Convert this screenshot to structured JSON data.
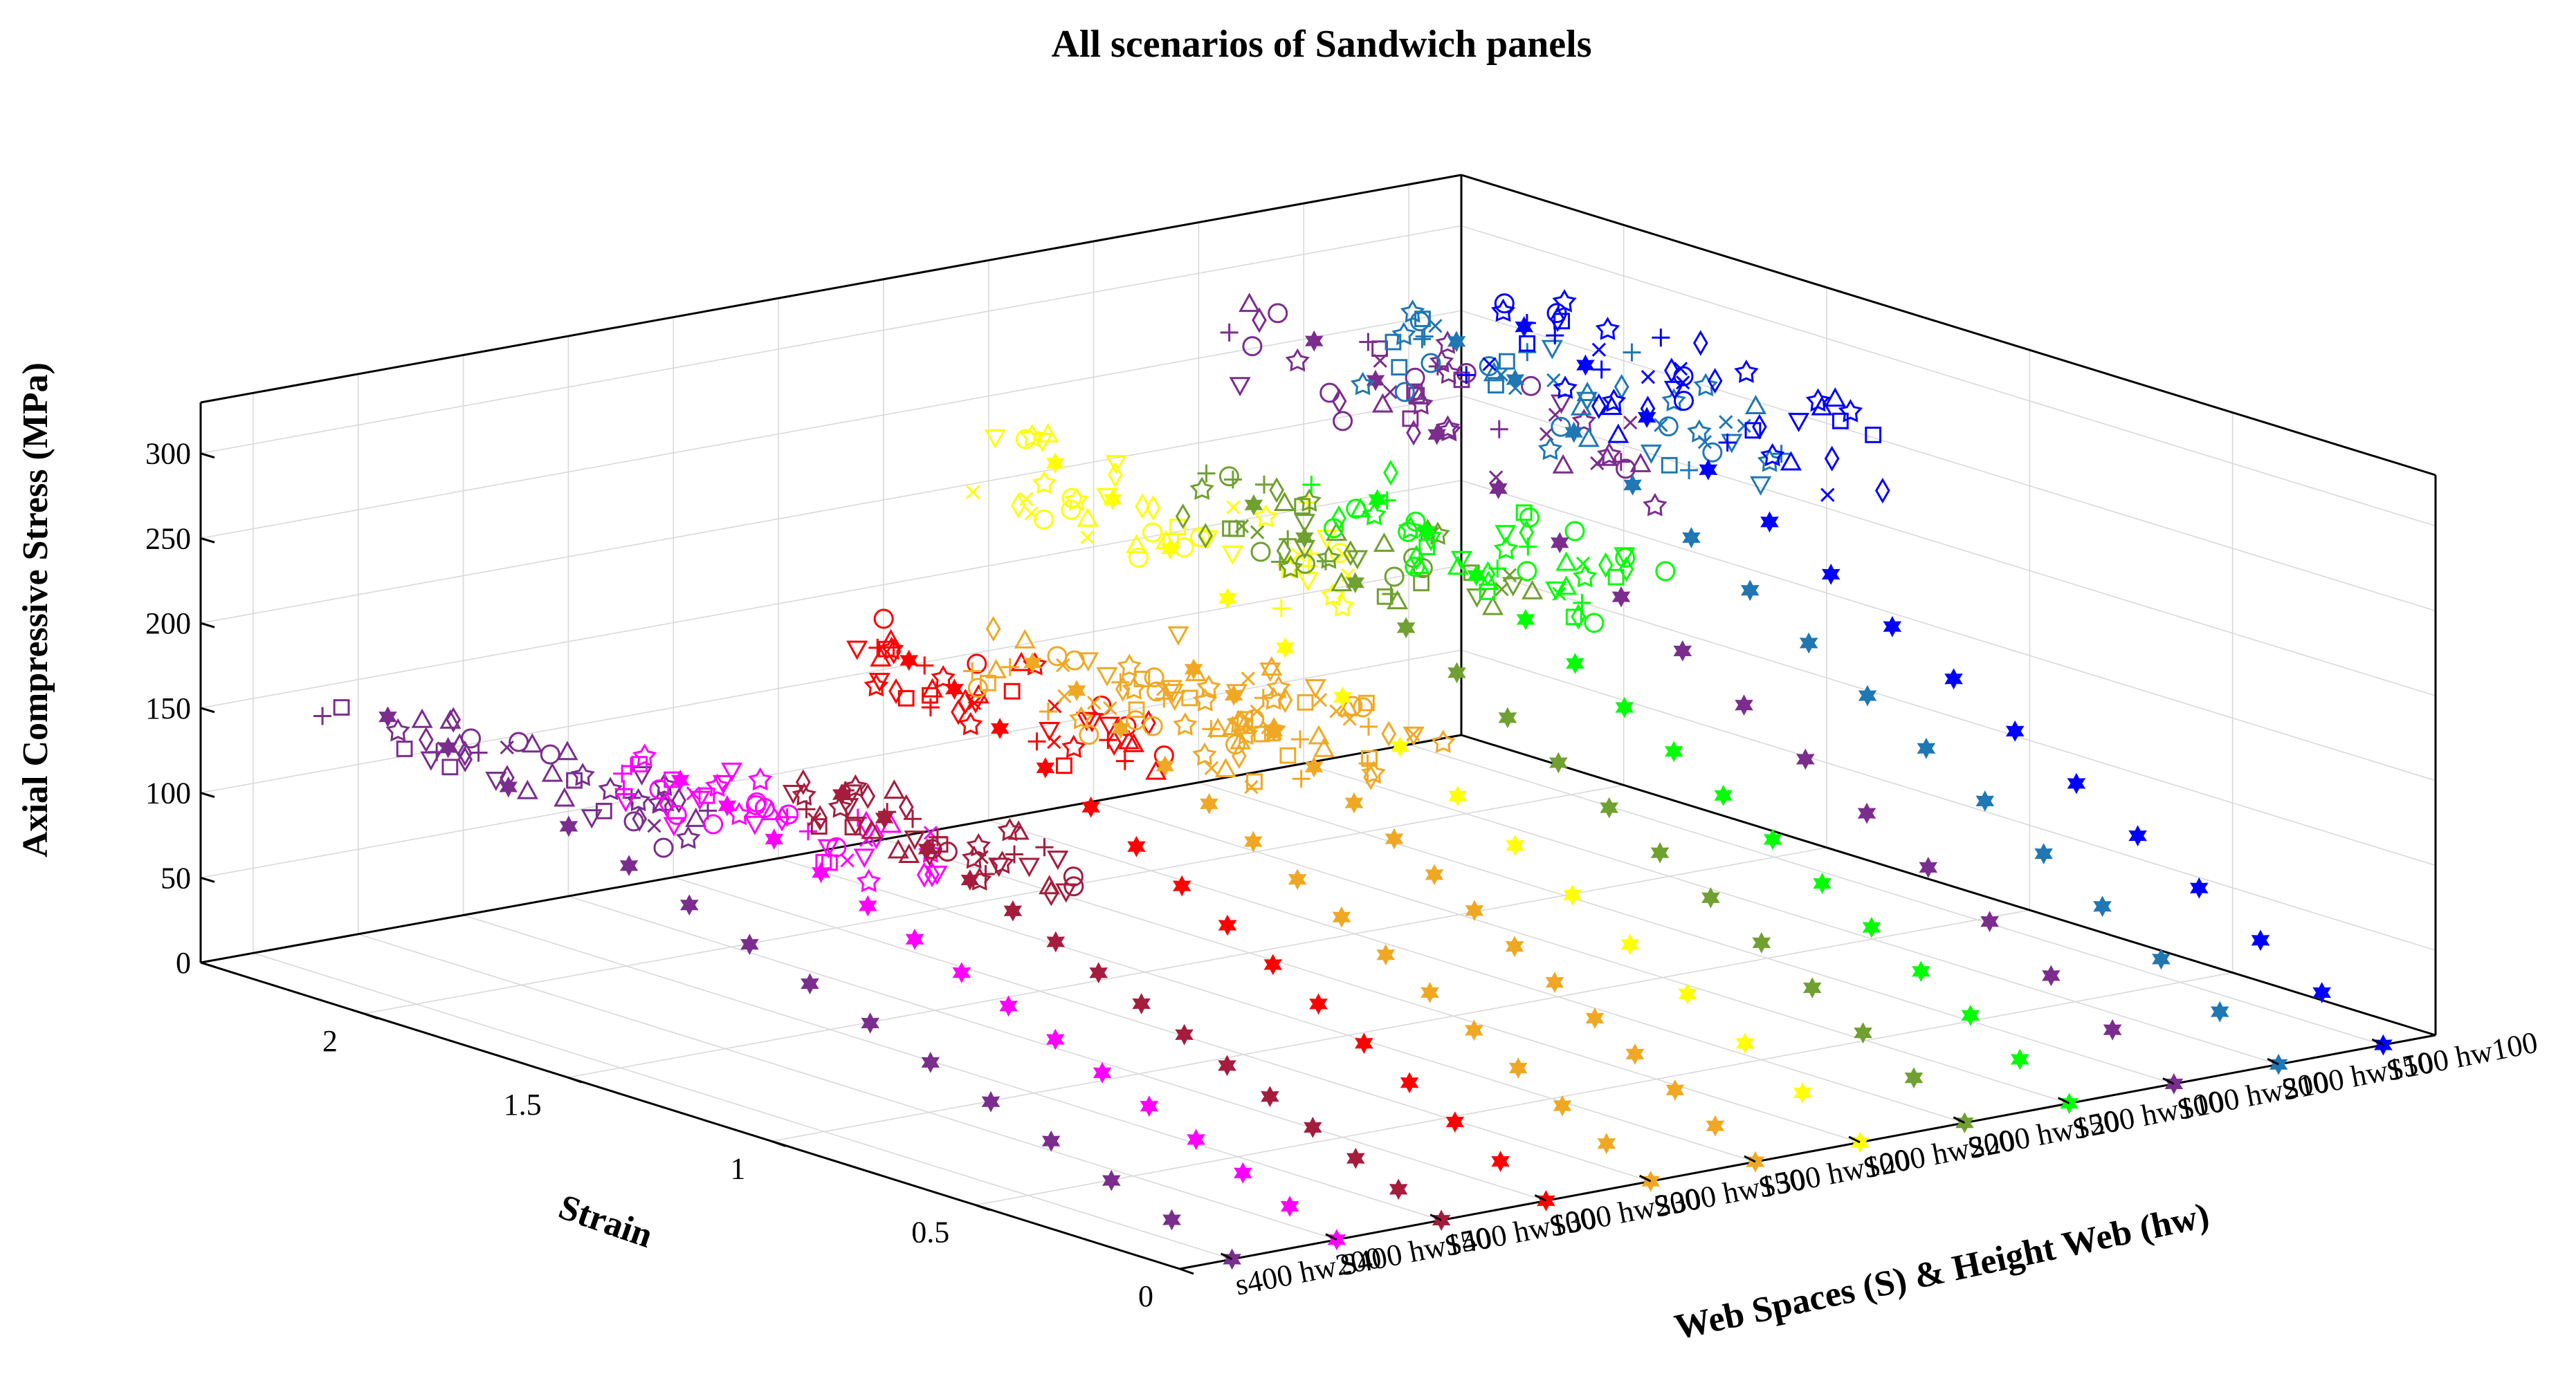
{
  "chart_data": {
    "type": "scatter",
    "subtype": "3d-scatter",
    "title": "All scenarios of Sandwich panels",
    "xlabel": "Web Spaces (S) & Height Web (hw)",
    "ylabel": "Strain",
    "zlabel": "Axial Compressive Stress (MPa)",
    "grid": true,
    "categories": [
      "s400 hw200",
      "S400 hw150",
      "S400 hw100",
      "S300 hw200",
      "S300 hw150",
      "S300 hw100",
      "S200 hw200",
      "S200 hw150",
      "S200 hw100",
      "S100 hw200",
      "S100 hw150",
      "S100 hw100"
    ],
    "strain_ticks": [
      "0",
      "0.5",
      "1",
      "1.5",
      "2"
    ],
    "stress_ticks": [
      "0",
      "50",
      "100",
      "150",
      "200",
      "250",
      "300"
    ],
    "strain_range": [
      0,
      2.4
    ],
    "stress_range": [
      0,
      330
    ],
    "series": [
      {
        "name": "s400 hw200",
        "color": "#7b2d8e",
        "peak_stress": 175,
        "peak_strain": 2.25
      },
      {
        "name": "S400 hw150",
        "color": "#ff00ff",
        "peak_stress": 160,
        "peak_strain": 1.75
      },
      {
        "name": "S400 hw100",
        "color": "#a51c3c",
        "peak_stress": 150,
        "peak_strain": 1.6
      },
      {
        "name": "S300 hw200",
        "color": "#ff0000",
        "peak_stress": 215,
        "peak_strain": 1.7
      },
      {
        "name": "S300 hw150",
        "color": "#f0a824",
        "peak_stress": 205,
        "peak_strain": 1.65
      },
      {
        "name": "S300 hw100",
        "color": "#f0a824",
        "peak_stress": 200,
        "peak_strain": 1.5
      },
      {
        "name": "S200 hw200",
        "color": "#ffff00",
        "peak_stress": 270,
        "peak_strain": 2.15
      },
      {
        "name": "S200 hw150",
        "color": "#70a030",
        "peak_stress": 250,
        "peak_strain": 1.9
      },
      {
        "name": "S200 hw100",
        "color": "#00ff00",
        "peak_stress": 245,
        "peak_strain": 1.85
      },
      {
        "name": "S100 hw200",
        "color": "#7b2d8e",
        "peak_stress": 300,
        "peak_strain": 2.3
      },
      {
        "name": "S100 hw150",
        "color": "#1f77b4",
        "peak_stress": 295,
        "peak_strain": 2.2
      },
      {
        "name": "S100 hw100",
        "color": "#0000ff",
        "peak_stress": 285,
        "peak_strain": 2.3
      }
    ]
  }
}
